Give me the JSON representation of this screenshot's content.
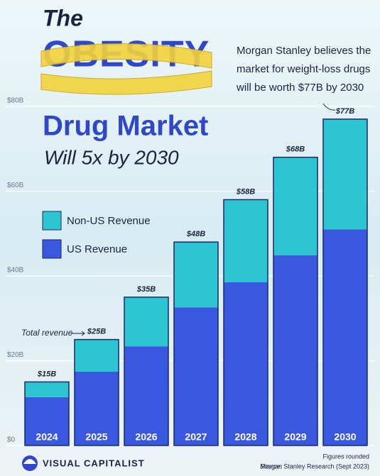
{
  "chart_data": {
    "type": "stacked_bar",
    "title_lines": [
      "The",
      "OBESITY",
      "Drug Market",
      "Will 5x by 2030"
    ],
    "annotation_lines": [
      "Morgan Stanley believes the",
      "market for weight-loss drugs",
      "will be worth $77B by 2030"
    ],
    "total_note": "Total revenue",
    "categories": [
      "2024",
      "2025",
      "2026",
      "2027",
      "2028",
      "2029",
      "2030"
    ],
    "series": [
      {
        "name": "US Revenue",
        "color": "#3a57e0",
        "values": [
          11.4,
          17.4,
          23.4,
          32.6,
          38.5,
          44.9,
          51.0
        ]
      },
      {
        "name": "Non-US Revenue",
        "color": "#2ec5d3",
        "values": [
          3.6,
          7.6,
          11.6,
          15.4,
          19.5,
          23.1,
          26.0
        ]
      }
    ],
    "totals": {
      "values": [
        15,
        25,
        35,
        48,
        58,
        68,
        77
      ],
      "value_labels": [
        "$15B",
        "$25B",
        "$35B",
        "$48B",
        "$58B",
        "$68B",
        "$77B"
      ]
    },
    "ylim": [
      0,
      80
    ],
    "yticks": [
      {
        "value": 0,
        "label": "$0"
      },
      {
        "value": 20,
        "label": "$20B"
      },
      {
        "value": 40,
        "label": "$40B"
      },
      {
        "value": 60,
        "label": "$60B"
      },
      {
        "value": 80,
        "label": "$80B"
      }
    ],
    "grid": true,
    "footnote": "Figures rounded",
    "source_label": "Source:",
    "source": "Morgan Stanley Research (Sept 2023)",
    "brand": "VISUAL CAPITALIST"
  }
}
